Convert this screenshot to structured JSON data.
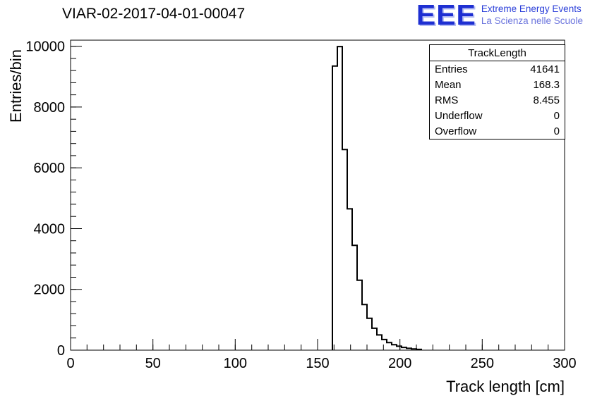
{
  "header": {
    "title": "VIAR-02-2017-04-01-00047",
    "logo": {
      "text": "EEE",
      "line1": "Extreme Energy Events",
      "line2": "La Scienza nelle Scuole"
    }
  },
  "stats": {
    "title": "TrackLength",
    "rows": [
      {
        "label": "Entries",
        "value": "41641"
      },
      {
        "label": "Mean",
        "value": "168.3"
      },
      {
        "label": "RMS",
        "value": "8.455"
      },
      {
        "label": "Underflow",
        "value": "0"
      },
      {
        "label": "Overflow",
        "value": "0"
      }
    ]
  },
  "chart_data": {
    "type": "bar",
    "title": "VIAR-02-2017-04-01-00047",
    "xlabel": "Track length [cm]",
    "ylabel": "Entries/bin",
    "xlim": [
      0,
      300
    ],
    "ylim": [
      0,
      10200
    ],
    "xticks": [
      0,
      50,
      100,
      150,
      200,
      250,
      300
    ],
    "yticks": [
      0,
      2000,
      4000,
      6000,
      8000,
      10000
    ],
    "x_minor_step": 10,
    "y_minor_step": 400,
    "grid": false,
    "legend": "none",
    "line_color": "#000000",
    "bins": {
      "start": 159,
      "width": 3,
      "counts": [
        9350,
        9990,
        6600,
        4650,
        3450,
        2300,
        1500,
        1050,
        720,
        500,
        350,
        250,
        180,
        130,
        90,
        60,
        40,
        25
      ]
    },
    "stats_summary": {
      "entries": 41641,
      "mean": 168.3,
      "rms": 8.455,
      "underflow": 0,
      "overflow": 0
    }
  }
}
